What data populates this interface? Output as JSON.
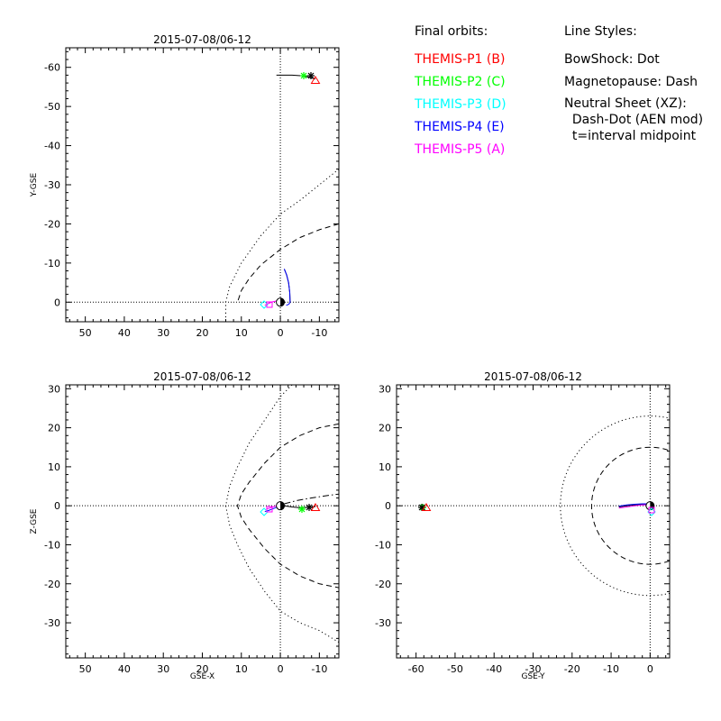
{
  "legend": {
    "orbits_title": "Final orbits:",
    "probes": [
      {
        "label": "THEMIS-P1 (B)",
        "color": "#ff0000"
      },
      {
        "label": "THEMIS-P2 (C)",
        "color": "#00ff00"
      },
      {
        "label": "THEMIS-P3 (D)",
        "color": "#00ffff"
      },
      {
        "label": "THEMIS-P4 (E)",
        "color": "#0000ff"
      },
      {
        "label": "THEMIS-P5 (A)",
        "color": "#ff00ff"
      }
    ],
    "styles_title": "Line Styles:",
    "styles": [
      "BowShock: Dot",
      "Magnetopause: Dash",
      "Neutral Sheet (XZ):",
      "  Dash-Dot (AEN mod)",
      "  t=interval midpoint"
    ]
  },
  "chart_data": [
    {
      "type": "line",
      "title": "2015-07-08/06-12",
      "xlabel": "",
      "ylabel": "Y-GSE",
      "xlim": [
        55,
        -15
      ],
      "ylim": [
        5,
        -65
      ],
      "x_ticks": [
        50,
        40,
        30,
        20,
        10,
        0,
        -10
      ],
      "y_ticks": [
        -60,
        -50,
        -40,
        -30,
        -20,
        -10,
        0
      ],
      "series": [
        {
          "color": "#000000",
          "style": "dot",
          "x": [
            -15,
            -10,
            -5,
            0,
            5,
            10,
            13,
            14,
            14
          ],
          "y": [
            -34,
            -30,
            -26,
            -22.5,
            -17,
            -10,
            -4,
            0,
            5
          ]
        },
        {
          "color": "#000000",
          "style": "dash",
          "x": [
            -15,
            -10,
            -5,
            0,
            5,
            8,
            10,
            11
          ],
          "y": [
            -20,
            -18.5,
            -16.5,
            -13.5,
            -9.5,
            -6,
            -3,
            0
          ]
        },
        {
          "color": "#000000",
          "style": "solid",
          "x": [
            1,
            -3,
            -6,
            -9
          ],
          "y": [
            -58,
            -58,
            -57.8,
            -57
          ]
        },
        {
          "color": "#000000",
          "style": "solid",
          "x": [
            -1,
            -1.6,
            -2.1,
            -2.4,
            -2.5
          ],
          "y": [
            -8.5,
            -7,
            -5,
            -2.5,
            0
          ]
        },
        {
          "color": "#0000ff",
          "style": "solid",
          "x": [
            -1,
            -1.6,
            -2.1,
            -2.4,
            -2.5,
            -2.2,
            -1.5
          ],
          "y": [
            -8.5,
            -7,
            -5,
            -2.5,
            0,
            0.5,
            0.8
          ]
        },
        {
          "color": "#ff00ff",
          "style": "solid",
          "x": [
            -0.5,
            0,
            1,
            2,
            3,
            4
          ],
          "y": [
            -0.2,
            -0.4,
            -0.3,
            -0.1,
            0.3,
            0.8
          ]
        }
      ]
    },
    {
      "type": "line",
      "title": "2015-07-08/06-12",
      "xlabel": "GSE-X",
      "ylabel": "Z-GSE",
      "xlim": [
        55,
        -15
      ],
      "ylim": [
        -39,
        31
      ],
      "x_ticks": [
        50,
        40,
        30,
        20,
        10,
        0,
        -10
      ],
      "y_ticks": [
        -30,
        -20,
        -10,
        0,
        10,
        20,
        30
      ],
      "series": [
        {
          "color": "#000000",
          "style": "dot",
          "x": [
            -3,
            0,
            4,
            8,
            11,
            13,
            14,
            13,
            11,
            8,
            4,
            0,
            -5,
            -10,
            -15
          ],
          "y": [
            31,
            28,
            22,
            16,
            10,
            5,
            0,
            -5,
            -10,
            -16,
            -22,
            -27,
            -30,
            -32,
            -35
          ]
        },
        {
          "color": "#000000",
          "style": "dash",
          "x": [
            -15,
            -10,
            -5,
            0,
            4,
            8,
            10,
            11,
            10,
            8,
            4,
            0,
            -5,
            -10,
            -15
          ],
          "y": [
            21,
            20,
            18,
            15,
            11,
            6,
            3,
            0,
            -3,
            -6,
            -11,
            -15,
            -18,
            -20,
            -21
          ]
        },
        {
          "color": "#000000",
          "style": "dashdot",
          "x": [
            -1,
            -4,
            -8,
            -12,
            -15
          ],
          "y": [
            0.5,
            1.3,
            2,
            2.6,
            3
          ]
        },
        {
          "color": "#000000",
          "style": "solid",
          "x": [
            -1,
            -3,
            -5,
            -7,
            -9
          ],
          "y": [
            0,
            -0.3,
            -0.5,
            -0.4,
            -0.2
          ]
        },
        {
          "color": "#0000ff",
          "style": "solid",
          "x": [
            -1,
            0,
            1.5,
            3,
            4
          ],
          "y": [
            0.3,
            0,
            -0.6,
            -1.2,
            -1.5
          ]
        },
        {
          "color": "#ff00ff",
          "style": "solid",
          "x": [
            -0.5,
            1,
            2.5,
            3.5
          ],
          "y": [
            0.5,
            0,
            -0.5,
            -0.8
          ]
        }
      ]
    },
    {
      "type": "line",
      "title": "2015-07-08/06-12",
      "xlabel": "GSE-Y",
      "ylabel": "",
      "xlim": [
        -65,
        5
      ],
      "ylim": [
        -39,
        31
      ],
      "x_ticks": [
        -60,
        -50,
        -40,
        -30,
        -20,
        -10,
        0
      ],
      "y_ticks": [
        -30,
        -20,
        -10,
        0,
        10,
        20,
        30
      ],
      "series": [
        {
          "color": "#000000",
          "style": "dot",
          "r": 23,
          "circle": true
        },
        {
          "color": "#000000",
          "style": "dash",
          "r": 15,
          "circle": true
        },
        {
          "color": "#000000",
          "style": "solid",
          "x": [
            -8,
            -6,
            -4,
            -2,
            -0.5,
            0
          ],
          "y": [
            -0.3,
            0,
            0.2,
            0.3,
            0.3,
            0
          ]
        },
        {
          "color": "#ff00ff",
          "style": "solid",
          "x": [
            -8,
            -6,
            -4,
            -2,
            -0.5,
            0
          ],
          "y": [
            -0.6,
            -0.3,
            0,
            0.2,
            0.2,
            -0.2
          ]
        },
        {
          "color": "#0000ff",
          "style": "solid",
          "x": [
            -8,
            -6,
            -4,
            -2,
            -0.5,
            0
          ],
          "y": [
            -0.1,
            0.2,
            0.4,
            0.5,
            0.5,
            0.2
          ]
        }
      ]
    }
  ]
}
